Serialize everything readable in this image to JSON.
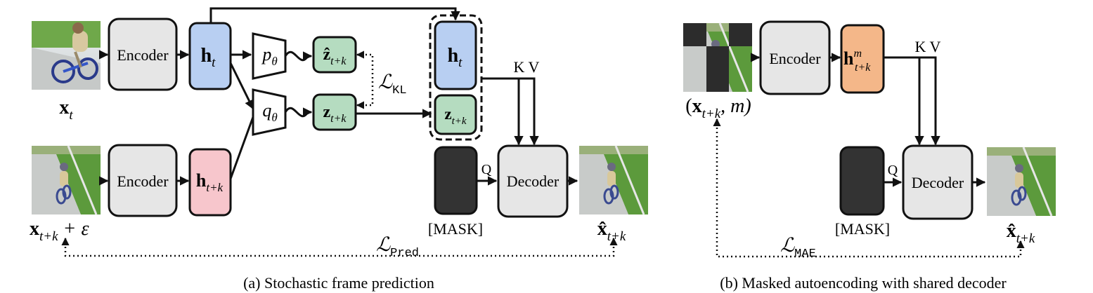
{
  "left": {
    "caption": "(a) Stochastic frame prediction",
    "encoder_top_label": "Encoder",
    "encoder_bottom_label": "Encoder",
    "decoder_label": "Decoder",
    "mask_label": "[MASK]",
    "q_label": "Q",
    "kv_label": "K V",
    "h_t": {
      "base": "h",
      "sub": "t"
    },
    "h_tk": {
      "base": "h",
      "sub": "t+k"
    },
    "z_hat": {
      "base": "ẑ",
      "sub": "t+k"
    },
    "z": {
      "base": "z",
      "sub": "t+k"
    },
    "p_theta": {
      "base": "p",
      "sub": "θ"
    },
    "q_theta": {
      "base": "q",
      "sub": "θ"
    },
    "loss_kl": {
      "base": "ℒ",
      "sub": "KL"
    },
    "loss_pred": {
      "base": "ℒ",
      "sub": "Pred"
    },
    "x_t": {
      "base": "x",
      "sub": "t"
    },
    "x_tk_noise": {
      "base": "x",
      "sub": "t+k",
      "tail": " + ε"
    },
    "x_hat": {
      "base": "x̂",
      "sub": "t+k"
    }
  },
  "right": {
    "caption": "(b) Masked autoencoding with shared decoder",
    "encoder_label": "Encoder",
    "decoder_label": "Decoder",
    "mask_label": "[MASK]",
    "q_label": "Q",
    "kv_label": "K V",
    "h_m": {
      "base": "h",
      "sup": "m",
      "sub": "t+k"
    },
    "x_masked": {
      "open": "(",
      "base": "x",
      "sub": "t+k",
      "tail": ", m)"
    },
    "x_hat": {
      "base": "x̂",
      "sub": "t+k"
    },
    "loss_mae": {
      "base": "ℒ",
      "sub": "MAE"
    }
  },
  "colors": {
    "encoder_fill": "#e6e6e6",
    "h_t_fill": "#b8cff2",
    "h_tk_fill": "#f7c6cc",
    "z_fill": "#b5dcc0",
    "h_m_fill": "#f4b789",
    "mask_fill": "#333333"
  }
}
